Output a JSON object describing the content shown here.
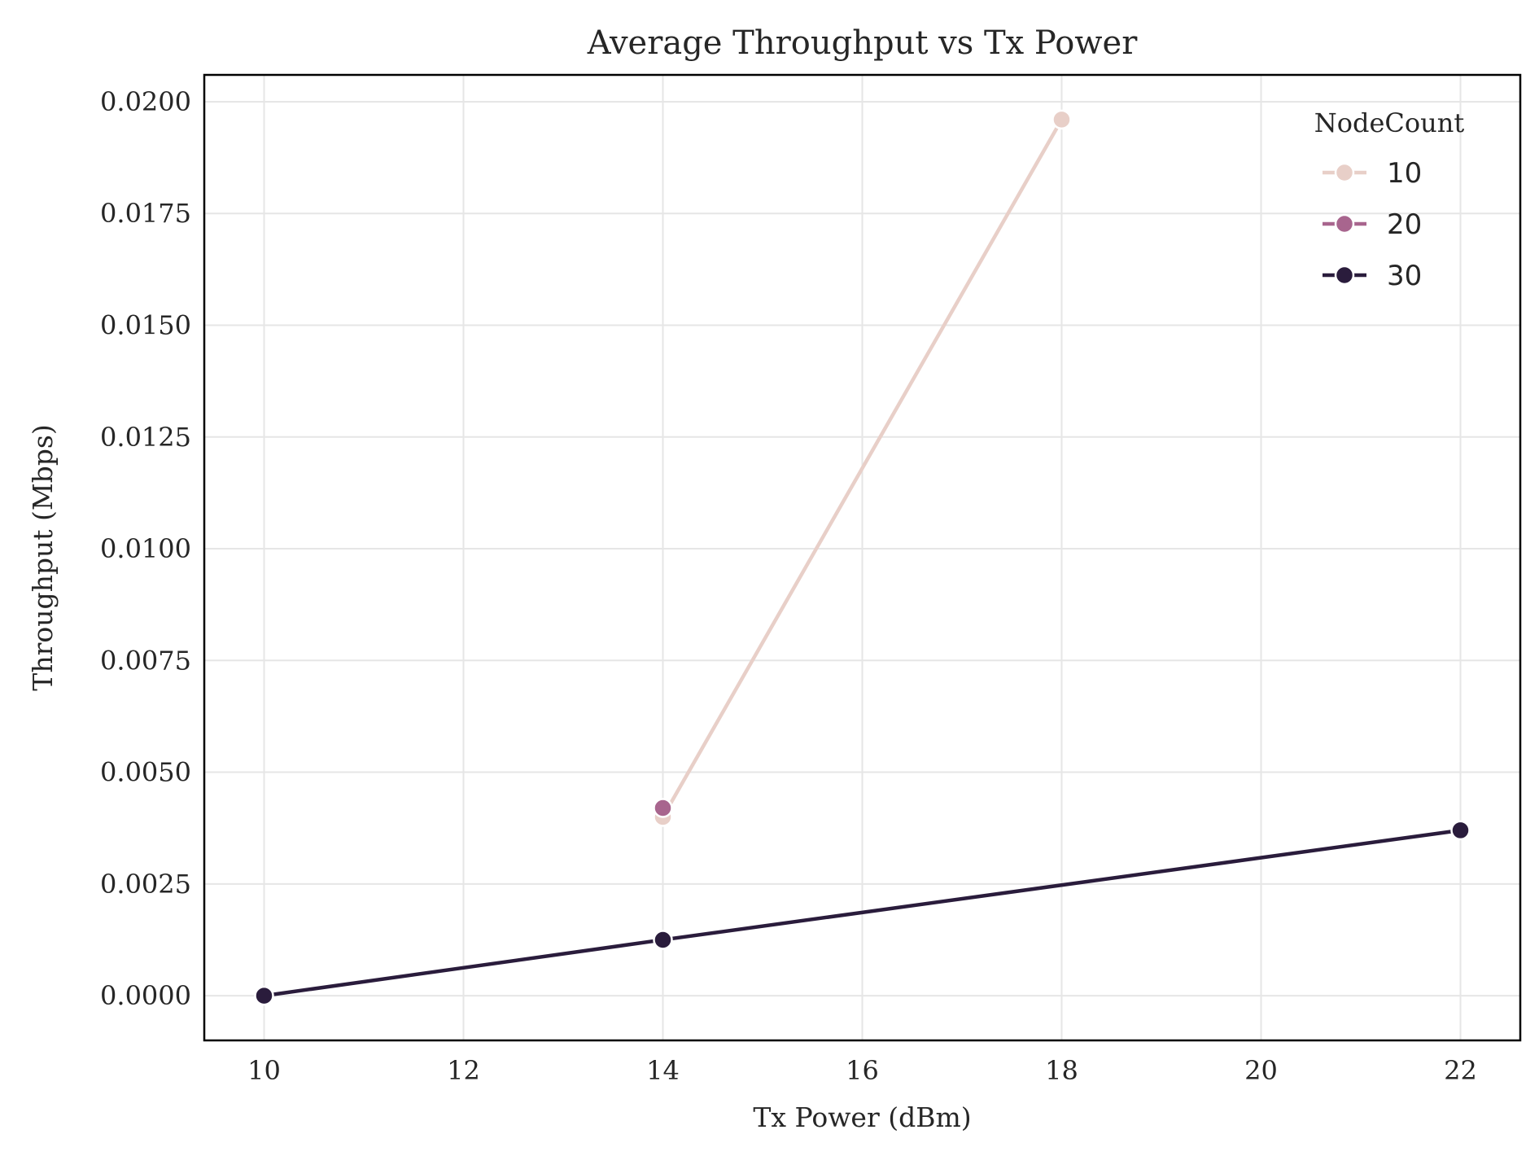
{
  "chart_data": {
    "type": "line",
    "title": "Average Throughput vs Tx Power",
    "xlabel": "Tx Power (dBm)",
    "ylabel": "Throughput (Mbps)",
    "xlim": [
      9.4,
      22.6
    ],
    "ylim": [
      -0.001,
      0.0206
    ],
    "x_ticks": [
      10,
      12,
      14,
      16,
      18,
      20,
      22
    ],
    "y_ticks": [
      0.0,
      0.0025,
      0.005,
      0.0075,
      0.01,
      0.0125,
      0.015,
      0.0175,
      0.02
    ],
    "y_tick_labels": [
      "0.0000",
      "0.0025",
      "0.0050",
      "0.0075",
      "0.0100",
      "0.0125",
      "0.0150",
      "0.0175",
      "0.0200"
    ],
    "x_tick_labels": [
      "10",
      "12",
      "14",
      "16",
      "18",
      "20",
      "22"
    ],
    "grid": true,
    "legend": {
      "title": "NodeCount",
      "position": "top-right"
    },
    "series": [
      {
        "name": "10",
        "color": "#e8cfc8",
        "x": [
          14,
          18
        ],
        "y": [
          0.004,
          0.0196
        ]
      },
      {
        "name": "20",
        "color": "#a8658e",
        "x": [
          14
        ],
        "y": [
          0.0042
        ]
      },
      {
        "name": "30",
        "color": "#2a1c3c",
        "x": [
          10,
          14,
          22
        ],
        "y": [
          0.0,
          0.00125,
          0.0037
        ]
      }
    ]
  }
}
